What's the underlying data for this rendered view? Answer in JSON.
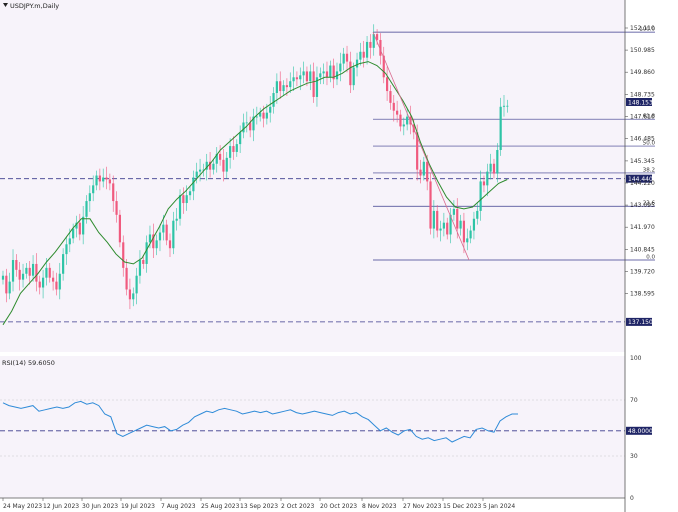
{
  "chart_data": [
    {
      "type": "candlestick",
      "title": "USDJPY.m,Daily",
      "colors": {
        "bull": "#2ec4a6",
        "bear": "#f05a7e",
        "ma": "#2e8b2e",
        "fib": "#3a3a8c",
        "bg": "#f7f3fa",
        "tag_bg": "#1f2566"
      },
      "ylim": [
        136.9,
        152.4
      ],
      "price_ticks": [
        "152.110",
        "150.985",
        "149.860",
        "148.735",
        "147.610",
        "146.485",
        "145.345",
        "144.220",
        "143.095",
        "141.970",
        "140.845",
        "139.720",
        "138.595"
      ],
      "x_ticks": [
        "24 May 2023",
        "12 Jun 2023",
        "30 Jun 2023",
        "19 Jul 2023",
        "7 Aug 2023",
        "25 Aug 2023",
        "13 Sep 2023",
        "2 Oct 2023",
        "20 Oct 2023",
        "8 Nov 2023",
        "27 Nov 2023",
        "15 Dec 2023",
        "5 Jan 2024"
      ],
      "current_price_label": "148.153",
      "horizontal_levels": [
        {
          "value": 144.44,
          "label": "144.440"
        },
        {
          "value": 137.15,
          "label": "137.150"
        }
      ],
      "fibonacci": {
        "high": 151.9,
        "low": 140.3,
        "levels": [
          {
            "ratio": 1.0,
            "label": "100.0"
          },
          {
            "ratio": 0.618,
            "label": "61.8"
          },
          {
            "ratio": 0.5,
            "label": "50.0"
          },
          {
            "ratio": 0.382,
            "label": "38.2"
          },
          {
            "ratio": 0.236,
            "label": "23.6"
          },
          {
            "ratio": 0.0,
            "label": "0.0"
          }
        ]
      },
      "close_series": [
        139.5,
        138.6,
        139.2,
        140.3,
        139.8,
        139.3,
        139.6,
        139.9,
        139.5,
        140.1,
        139.2,
        138.9,
        139.4,
        139.9,
        139.4,
        139.2,
        138.8,
        139.6,
        140.6,
        141.1,
        141.4,
        141.9,
        142.2,
        141.6,
        142.5,
        143.3,
        143.7,
        144.1,
        144.6,
        144.3,
        144.5,
        144.4,
        144.2,
        143.3,
        142.6,
        141.2,
        139.9,
        138.8,
        138.3,
        138.6,
        139.5,
        140.3,
        140.1,
        141.2,
        141.6,
        140.9,
        141.3,
        141.7,
        142.1,
        141.3,
        140.9,
        142.3,
        142.4,
        143.6,
        143.2,
        143.6,
        143.8,
        144.5,
        144.8,
        144.9,
        144.9,
        145.3,
        144.9,
        145.2,
        145.7,
        145.4,
        144.8,
        145.5,
        146.1,
        145.8,
        146.2,
        146.8,
        147.3,
        147.3,
        146.9,
        147.6,
        147.6,
        147.8,
        147.5,
        147.8,
        148.1,
        148.8,
        149.4,
        148.9,
        149.2,
        149.1,
        149.4,
        149.6,
        149.5,
        149.7,
        149.9,
        149.4,
        149.9,
        148.6,
        149.6,
        149.8,
        149.9,
        149.6,
        150.2,
        149.5,
        149.9,
        150.3,
        150.8,
        150.4,
        149.2,
        150.1,
        150.5,
        150.9,
        150.6,
        151.4,
        151.1,
        151.8,
        151.5,
        150.7,
        149.6,
        148.9,
        148.3,
        147.9,
        147.7,
        147.1,
        147.2,
        147.6,
        147.2,
        146.8,
        144.9,
        144.6,
        145.3,
        144.3,
        141.9,
        142.8,
        141.8,
        141.9,
        142.2,
        141.6,
        142.6,
        142.9,
        141.9,
        142.3,
        141.2,
        141.4,
        141.8,
        142.4,
        142.8,
        144.3,
        144.1,
        144.8,
        145.2,
        144.7,
        145.9,
        148.1,
        148.15,
        148.15
      ],
      "ma_series": [
        137.0,
        137.7,
        138.6,
        139.1,
        139.6,
        140.2,
        140.7,
        141.3,
        141.9,
        142.4,
        142.4,
        141.7,
        141.2,
        140.6,
        140.2,
        140.1,
        140.4,
        141.2,
        142.0,
        142.9,
        143.4,
        143.8,
        144.3,
        144.8,
        145.3,
        145.9,
        146.3,
        146.7,
        147.1,
        147.6,
        148.0,
        148.3,
        148.6,
        148.9,
        149.1,
        149.3,
        149.4,
        149.6,
        149.6,
        149.8,
        150.1,
        150.3,
        150.4,
        150.2,
        149.8,
        149.1,
        148.4,
        147.6,
        146.3,
        145.2,
        144.3,
        143.5,
        143.0,
        142.9,
        143.0,
        143.4,
        143.8,
        144.2,
        144.4
      ]
    },
    {
      "type": "line",
      "title": "RSI(14) 59.6050",
      "ylim": [
        0,
        100
      ],
      "y_ticks": [
        "100",
        "70",
        "30",
        "0"
      ],
      "level_label": "48.0000",
      "level_value": 48.0,
      "series": [
        68,
        66,
        65,
        64,
        65,
        66,
        62,
        63,
        64,
        65,
        64,
        65,
        68,
        69,
        67,
        68,
        66,
        60,
        58,
        46,
        44,
        46,
        48,
        50,
        52,
        51,
        50,
        51,
        48,
        49,
        52,
        54,
        58,
        60,
        62,
        61,
        63,
        64,
        63,
        62,
        60,
        61,
        62,
        61,
        62,
        60,
        61,
        62,
        63,
        61,
        60,
        61,
        62,
        61,
        60,
        59,
        61,
        62,
        60,
        61,
        58,
        56,
        52,
        48,
        50,
        47,
        45,
        48,
        49,
        44,
        42,
        43,
        41,
        42,
        43,
        40,
        42,
        44,
        43,
        49,
        50,
        48,
        47,
        55,
        58,
        60,
        60
      ]
    }
  ]
}
